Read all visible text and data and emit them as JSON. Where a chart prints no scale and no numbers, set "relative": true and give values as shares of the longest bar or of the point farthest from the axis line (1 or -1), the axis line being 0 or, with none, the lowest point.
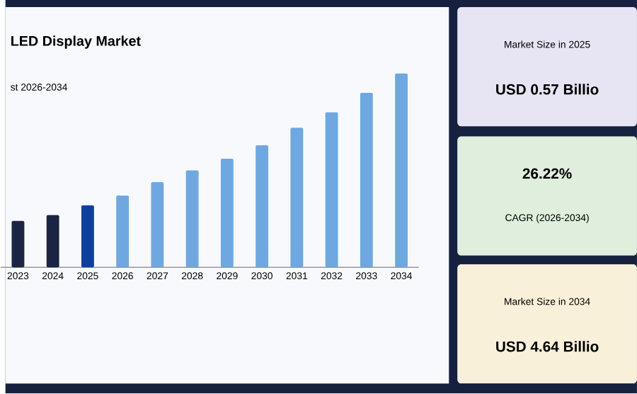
{
  "chart_data": [
    {
      "type": "bar",
      "title": "LED Display Market",
      "subtitle": "st 2026-2034",
      "categories": [
        "2023",
        "2024",
        "2025",
        "2026",
        "2027",
        "2028",
        "2029",
        "2030",
        "2031",
        "2032",
        "2033",
        "2034"
      ],
      "values": [
        0.24,
        0.27,
        0.32,
        0.37,
        0.44,
        0.5,
        0.56,
        0.63,
        0.72,
        0.8,
        0.9,
        1
      ],
      "colors": [
        "#1b2442",
        "#1b2442",
        "#0d3f9e",
        "#6fa8e0",
        "#6fa8e0",
        "#6fa8e0",
        "#6fa8e0",
        "#6fa8e0",
        "#6fa8e0",
        "#6fa8e0",
        "#6fa8e0",
        "#6fa8e0"
      ],
      "relative": true
    },
    {
      "type": "other",
      "annotations": [
        "Market Size in 2025",
        "USD 0.57 Billio",
        "26.22%",
        "CAGR (2026-2034)",
        "Market Size in 2034",
        "USD 4.64 Billio"
      ]
    }
  ]
}
